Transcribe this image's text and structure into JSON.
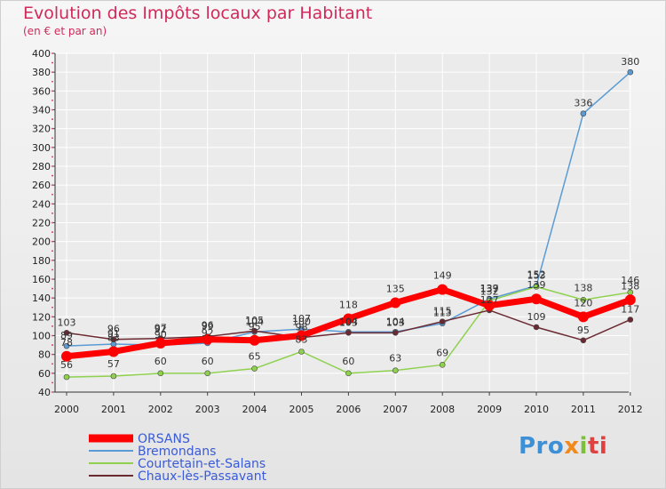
{
  "title": "Evolution des Impôts locaux par Habitant",
  "subtitle": "(en € et par an)",
  "logo": {
    "p1": "Pro",
    "p2": "x",
    "p3": "i",
    "p4": "ti"
  },
  "chart_data": {
    "type": "line",
    "title": "Evolution des Impôts locaux par Habitant",
    "ylabel": "(en € et par an)",
    "xlabel": "",
    "x": [
      "2000",
      "2001",
      "2002",
      "2003",
      "2004",
      "2005",
      "2006",
      "2007",
      "2008",
      "2009",
      "2010",
      "2011",
      "2012"
    ],
    "ylim": [
      40,
      400
    ],
    "yticks": [
      40,
      60,
      80,
      100,
      120,
      140,
      160,
      180,
      200,
      220,
      240,
      260,
      280,
      300,
      320,
      340,
      360,
      380,
      400
    ],
    "legend_position": "bottom-left",
    "series": [
      {
        "name": "ORSANS",
        "color": "#ff0000",
        "emphasis": true,
        "values": [
          78,
          83,
          92,
          96,
          95,
          100,
          118,
          135,
          149,
          132,
          139,
          120,
          138
        ]
      },
      {
        "name": "Bremondans",
        "color": "#5b9bd5",
        "values": [
          89,
          91,
          90,
          92,
          104,
          107,
          104,
          104,
          113,
          139,
          153,
          336,
          380
        ]
      },
      {
        "name": "Courtetain-et-Salans",
        "color": "#8fd14f",
        "values": [
          56,
          57,
          60,
          60,
          65,
          83,
          60,
          63,
          69,
          137,
          152,
          138,
          146
        ]
      },
      {
        "name": "Chaux-lès-Passavant",
        "color": "#6b2a32",
        "values": [
          103,
          96,
          97,
          99,
          105,
          98,
          103,
          103,
          115,
          127,
          109,
          95,
          117
        ]
      }
    ]
  }
}
